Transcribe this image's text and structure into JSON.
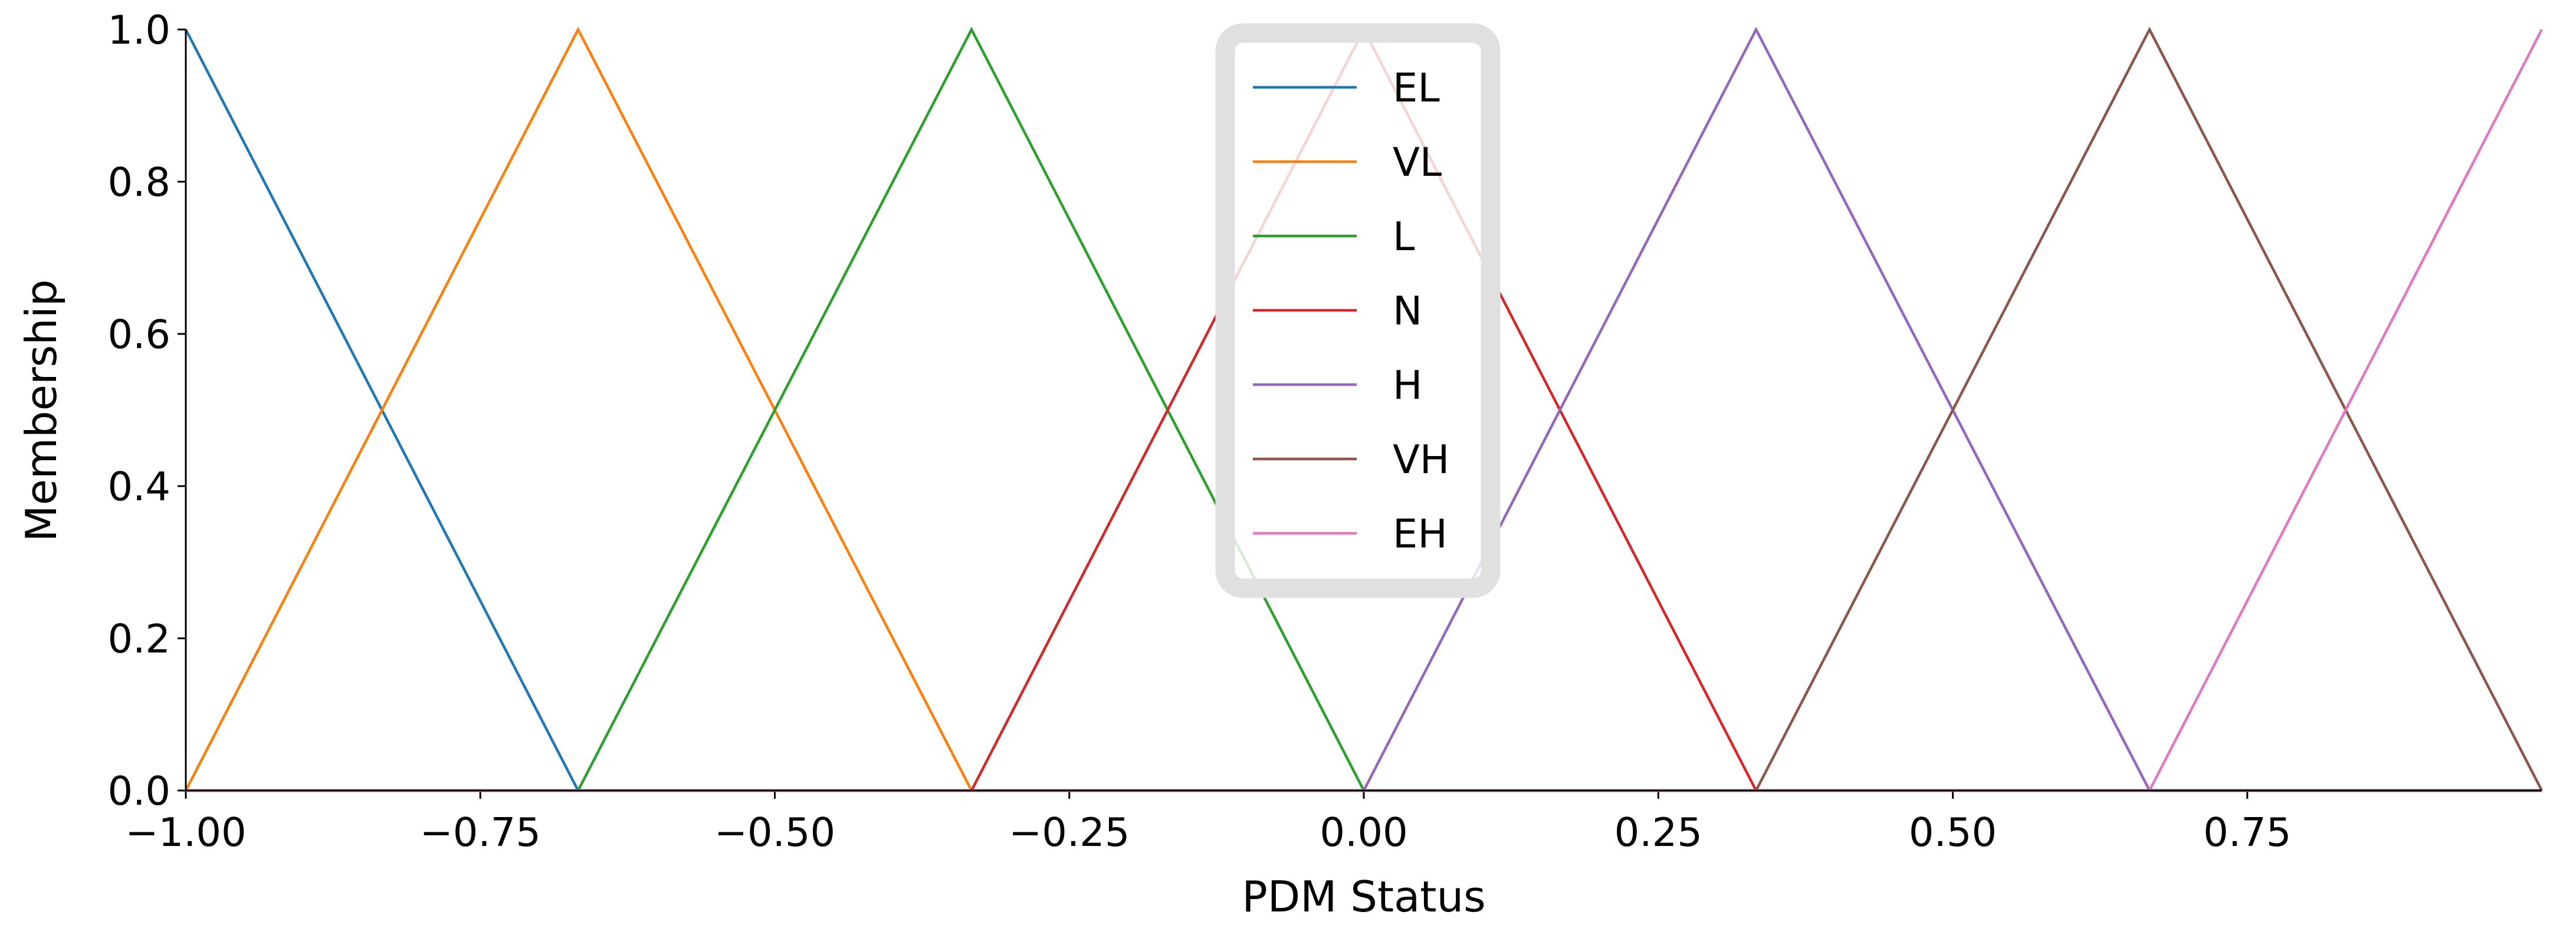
{
  "chart_data": {
    "type": "line",
    "xlabel": "PDM Status",
    "ylabel": "Membership",
    "xlim": [
      -1,
      1
    ],
    "ylim": [
      0,
      1
    ],
    "xticks": [
      {
        "value": -1,
        "label": "−1.00"
      },
      {
        "value": -0.75,
        "label": "−0.75"
      },
      {
        "value": -0.5,
        "label": "−0.50"
      },
      {
        "value": -0.25,
        "label": "−0.25"
      },
      {
        "value": 0,
        "label": "0.00"
      },
      0.25,
      {
        "value": 0.5,
        "label": "0.50"
      },
      0.75
    ],
    "yticks": [
      {
        "value": 0,
        "label": "0.0"
      },
      0.2,
      0.4,
      0.6,
      0.8,
      {
        "value": 1,
        "label": "1.0"
      }
    ],
    "legend": "upper center",
    "series": [
      {
        "name": "EL",
        "color": "#1f77b4",
        "x": [
          -1,
          -0.667,
          1
        ],
        "values": [
          1,
          0,
          0
        ]
      },
      {
        "name": "VL",
        "color": "#ff7f0e",
        "x": [
          -1,
          -0.667,
          -0.333,
          1
        ],
        "values": [
          0,
          1,
          0,
          0
        ]
      },
      {
        "name": "L",
        "color": "#2ca02c",
        "x": [
          -1,
          -0.667,
          -0.333,
          0,
          1
        ],
        "values": [
          0,
          0,
          1,
          0,
          0
        ]
      },
      {
        "name": "N",
        "color": "#d62728",
        "x": [
          -1,
          -0.333,
          0,
          0.333,
          1
        ],
        "values": [
          0,
          0,
          1,
          0,
          0
        ]
      },
      {
        "name": "H",
        "color": "#9467bd",
        "x": [
          -1,
          0,
          0.333,
          0.667,
          1
        ],
        "values": [
          0,
          0,
          1,
          0,
          0
        ]
      },
      {
        "name": "VH",
        "color": "#8c564b",
        "x": [
          -1,
          0.333,
          0.667,
          1
        ],
        "values": [
          0,
          0,
          1,
          0
        ]
      },
      {
        "name": "EH",
        "color": "#e377c2",
        "x": [
          -1,
          0.667,
          1
        ],
        "values": [
          0,
          0,
          1
        ]
      }
    ]
  }
}
